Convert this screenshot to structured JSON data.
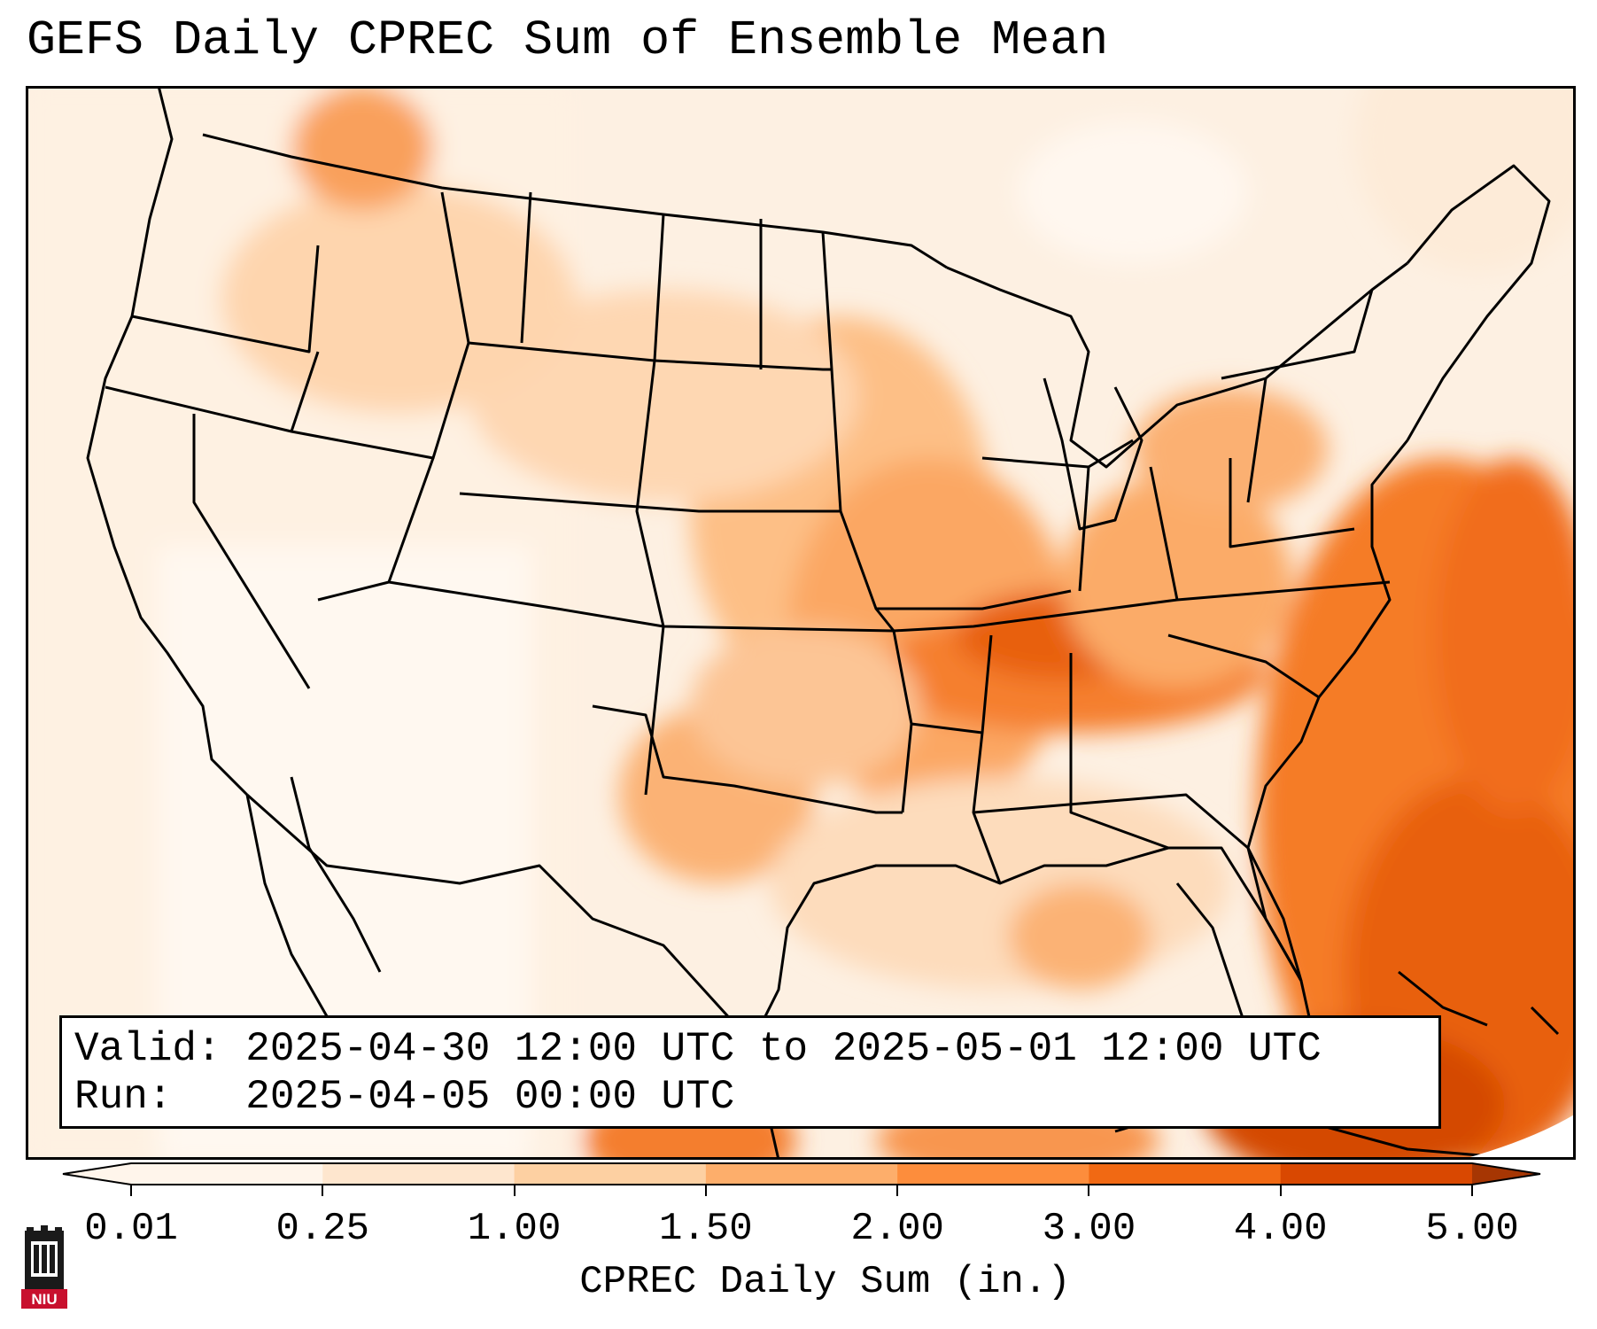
{
  "title": "GEFS Daily CPREC Sum of Ensemble Mean",
  "info": {
    "valid_label": "Valid:",
    "valid_value": "2025-04-30 12:00 UTC to 2025-05-01 12:00 UTC",
    "run_label": "Run:",
    "run_value": "2025-04-05 00:00 UTC"
  },
  "colorbar": {
    "label": "CPREC Daily Sum (in.)",
    "ticks": [
      "0.01",
      "0.25",
      "1.00",
      "1.50",
      "2.00",
      "3.00",
      "4.00",
      "5.00"
    ],
    "colors": [
      "#fff5eb",
      "#fee6ce",
      "#fdd0a2",
      "#fdae6b",
      "#fd8d3c",
      "#f16913",
      "#d94801",
      "#a63603"
    ]
  },
  "logo": {
    "text": "NIU",
    "color": "#c8102e"
  }
}
